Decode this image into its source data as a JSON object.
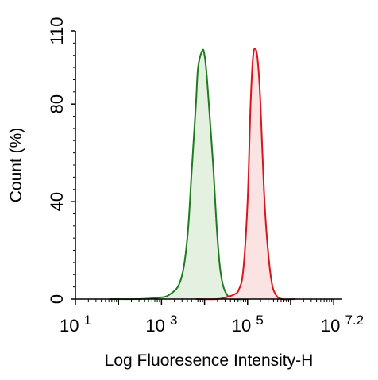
{
  "chart_data": {
    "type": "area",
    "xlabel": "Log Fluoresence Intensity-H",
    "ylabel": "Count  (%)",
    "x_scale": "log10",
    "xlim_log10": [
      1,
      7.2
    ],
    "ylim": [
      0,
      110
    ],
    "x_ticks": [
      {
        "exp": "1",
        "value_log10": 1
      },
      {
        "exp": "3",
        "value_log10": 3
      },
      {
        "exp": "5",
        "value_log10": 5
      },
      {
        "exp": "7.2",
        "value_log10": 7.2
      }
    ],
    "x_tick_base": "10",
    "y_ticks": [
      "0",
      "40",
      "80",
      "110"
    ],
    "y_tick_values": [
      0,
      40,
      80,
      110
    ],
    "grid": false,
    "series": [
      {
        "color": "#1e7b1e",
        "fill": "#e4f1e1",
        "x_log10": [
          1.8,
          2.4,
          2.9,
          3.2,
          3.45,
          3.6,
          3.7,
          3.8,
          3.85,
          3.95,
          4.0,
          4.05,
          4.12,
          4.2,
          4.3,
          4.4,
          4.55,
          4.7,
          5.0
        ],
        "values": [
          0,
          0,
          0.5,
          2,
          8,
          25,
          52,
          80,
          95,
          102,
          100,
          92,
          75,
          55,
          25,
          8,
          1,
          0,
          0
        ]
      },
      {
        "color": "#d9161b",
        "fill": "#fbe3e3",
        "x_log10": [
          3.8,
          4.3,
          4.55,
          4.7,
          4.8,
          4.9,
          5.0,
          5.07,
          5.13,
          5.2,
          5.25,
          5.3,
          5.38,
          5.45,
          5.55,
          5.65,
          5.8,
          6.1
        ],
        "values": [
          0,
          0,
          1,
          2,
          4,
          12,
          40,
          80,
          100,
          102,
          95,
          80,
          45,
          25,
          8,
          2,
          0,
          0
        ]
      }
    ]
  }
}
